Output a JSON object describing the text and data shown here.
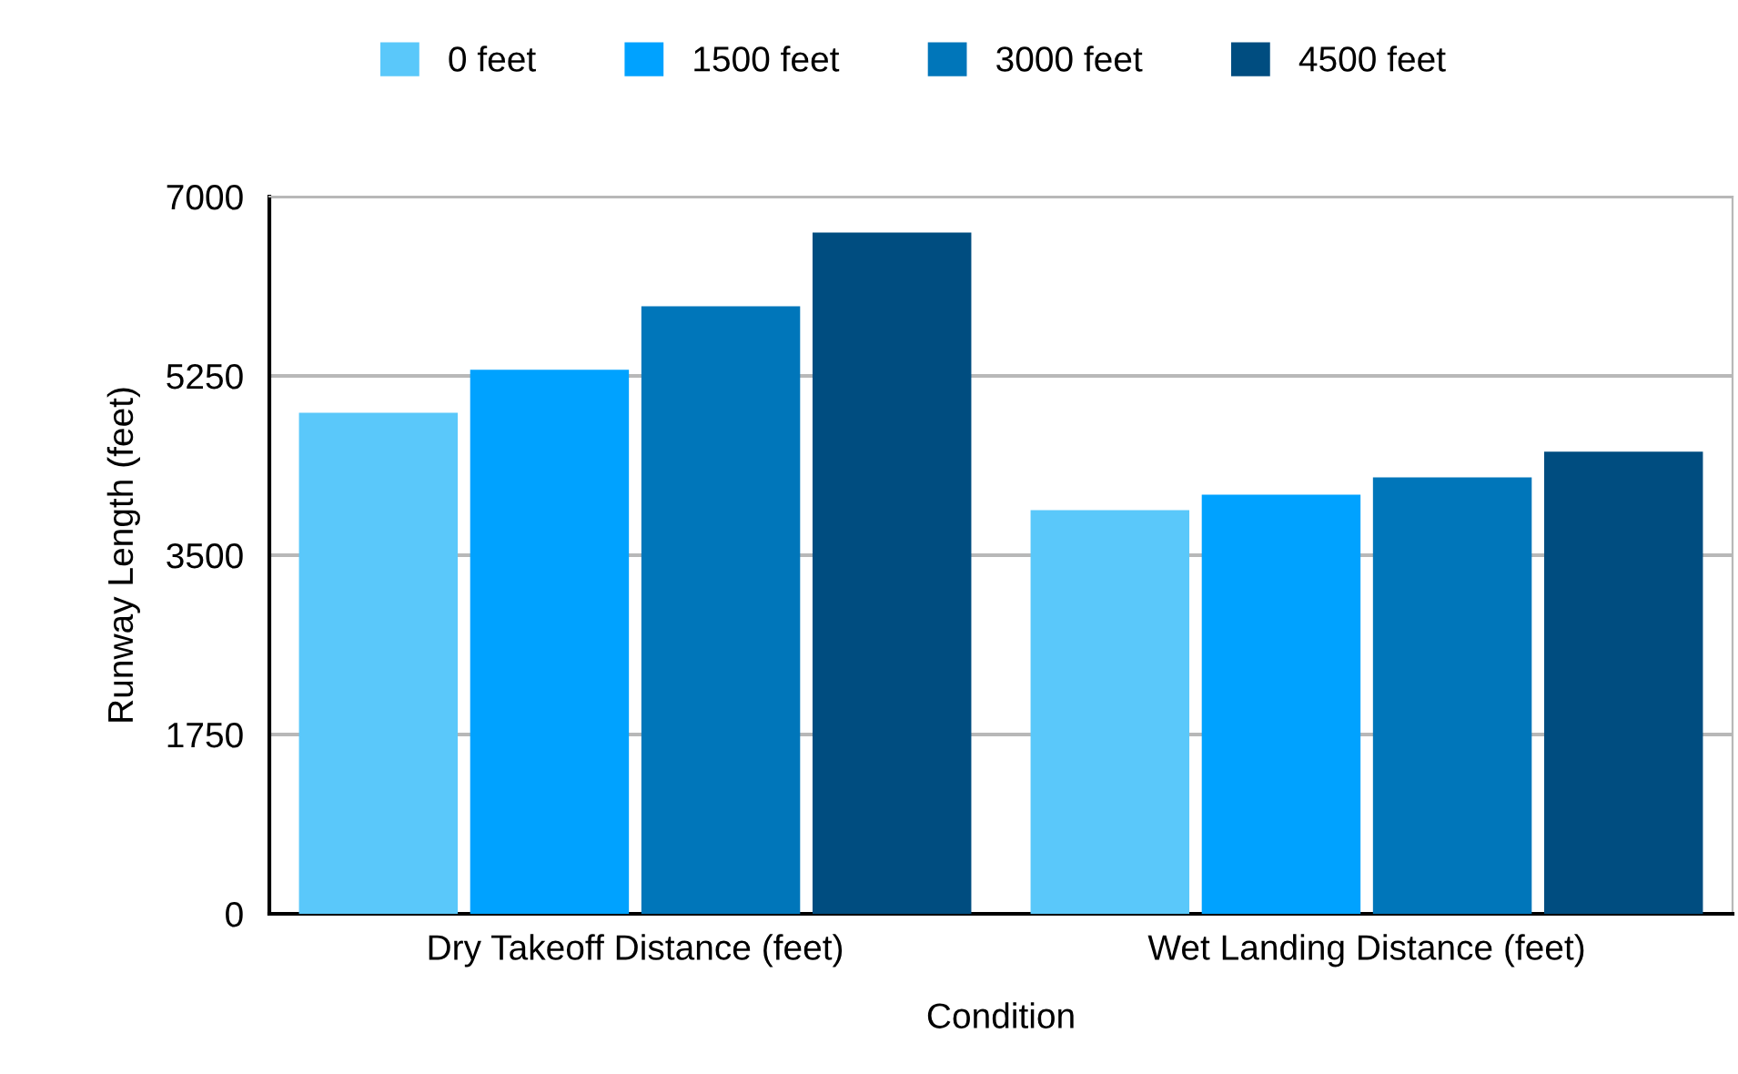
{
  "chart_data": {
    "type": "bar",
    "xlabel": "Condition",
    "ylabel": "Runway Length (feet)",
    "categories": [
      "Dry Takeoff Distance (feet)",
      "Wet Landing Distance (feet)"
    ],
    "series": [
      {
        "name": "0 feet",
        "color": "#5ac8fa",
        "values": [
          4890,
          3940
        ]
      },
      {
        "name": "1500 feet",
        "color": "#00a2ff",
        "values": [
          5310,
          4090
        ]
      },
      {
        "name": "3000 feet",
        "color": "#0076ba",
        "values": [
          5930,
          4260
        ]
      },
      {
        "name": "4500 feet",
        "color": "#004d80",
        "values": [
          6650,
          4510
        ]
      }
    ],
    "ylim": [
      0,
      7000
    ],
    "yticks": [
      0,
      1750,
      3500,
      5250,
      7000
    ],
    "grid": "y",
    "legend": "top"
  }
}
